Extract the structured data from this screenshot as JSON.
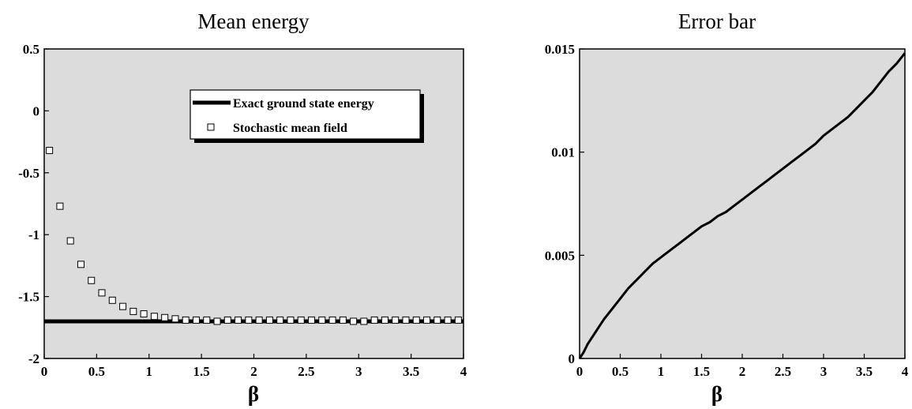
{
  "chart_data": [
    {
      "type": "scatter",
      "title": "Mean energy",
      "xlabel": "β",
      "ylabel": "",
      "xlim": [
        0,
        4
      ],
      "ylim": [
        -2,
        0.5
      ],
      "x_ticks": [
        "0",
        "0.5",
        "1",
        "1.5",
        "2",
        "2.5",
        "3",
        "3.5",
        "4"
      ],
      "y_ticks": [
        "-2",
        "-1.5",
        "-1",
        "-0.5",
        "0",
        "0.5"
      ],
      "grid": false,
      "legend_position": "top-right",
      "background": "#dcdcdc",
      "series": [
        {
          "name": "Exact ground state energy",
          "kind": "line",
          "color": "#000000",
          "x": [
            0,
            4
          ],
          "y": [
            -1.7,
            -1.7
          ]
        },
        {
          "name": "Stochastic mean field",
          "kind": "square-markers",
          "color": "#ffffff",
          "x": [
            0.05,
            0.15,
            0.25,
            0.35,
            0.45,
            0.55,
            0.65,
            0.75,
            0.85,
            0.95,
            1.05,
            1.15,
            1.25,
            1.35,
            1.45,
            1.55,
            1.65,
            1.75,
            1.85,
            1.95,
            2.05,
            2.15,
            2.25,
            2.35,
            2.45,
            2.55,
            2.65,
            2.75,
            2.85,
            2.95,
            3.05,
            3.15,
            3.25,
            3.35,
            3.45,
            3.55,
            3.65,
            3.75,
            3.85,
            3.95
          ],
          "y": [
            -0.32,
            -0.77,
            -1.05,
            -1.24,
            -1.37,
            -1.47,
            -1.53,
            -1.58,
            -1.62,
            -1.64,
            -1.66,
            -1.67,
            -1.68,
            -1.69,
            -1.69,
            -1.69,
            -1.7,
            -1.69,
            -1.69,
            -1.69,
            -1.69,
            -1.69,
            -1.69,
            -1.69,
            -1.69,
            -1.69,
            -1.69,
            -1.69,
            -1.69,
            -1.7,
            -1.7,
            -1.69,
            -1.69,
            -1.69,
            -1.69,
            -1.69,
            -1.69,
            -1.69,
            -1.69,
            -1.69
          ]
        }
      ]
    },
    {
      "type": "line",
      "title": "Error bar",
      "xlabel": "β",
      "ylabel": "",
      "xlim": [
        0,
        4
      ],
      "ylim": [
        0,
        0.015
      ],
      "x_ticks": [
        "0",
        "0.5",
        "1",
        "1.5",
        "2",
        "2.5",
        "3",
        "3.5",
        "4"
      ],
      "y_ticks": [
        "0",
        "0.005",
        "0.01",
        "0.015"
      ],
      "grid": false,
      "background": "#dcdcdc",
      "series": [
        {
          "color": "#000000",
          "x": [
            0,
            0.05,
            0.1,
            0.2,
            0.3,
            0.4,
            0.5,
            0.6,
            0.7,
            0.8,
            0.9,
            1.0,
            1.1,
            1.2,
            1.3,
            1.4,
            1.5,
            1.6,
            1.7,
            1.8,
            1.9,
            2.0,
            2.1,
            2.2,
            2.3,
            2.4,
            2.5,
            2.6,
            2.7,
            2.8,
            2.9,
            3.0,
            3.1,
            3.2,
            3.3,
            3.4,
            3.5,
            3.6,
            3.7,
            3.8,
            3.9,
            4.0
          ],
          "y": [
            0,
            0.0003,
            0.0007,
            0.0013,
            0.0019,
            0.0024,
            0.0029,
            0.0034,
            0.0038,
            0.0042,
            0.0046,
            0.0049,
            0.0052,
            0.0055,
            0.0058,
            0.0061,
            0.0064,
            0.0066,
            0.0069,
            0.0071,
            0.0074,
            0.0077,
            0.008,
            0.0083,
            0.0086,
            0.0089,
            0.0092,
            0.0095,
            0.0098,
            0.0101,
            0.0104,
            0.0108,
            0.0111,
            0.0114,
            0.0117,
            0.0121,
            0.0125,
            0.0129,
            0.0134,
            0.0139,
            0.0143,
            0.0148
          ]
        }
      ]
    }
  ]
}
